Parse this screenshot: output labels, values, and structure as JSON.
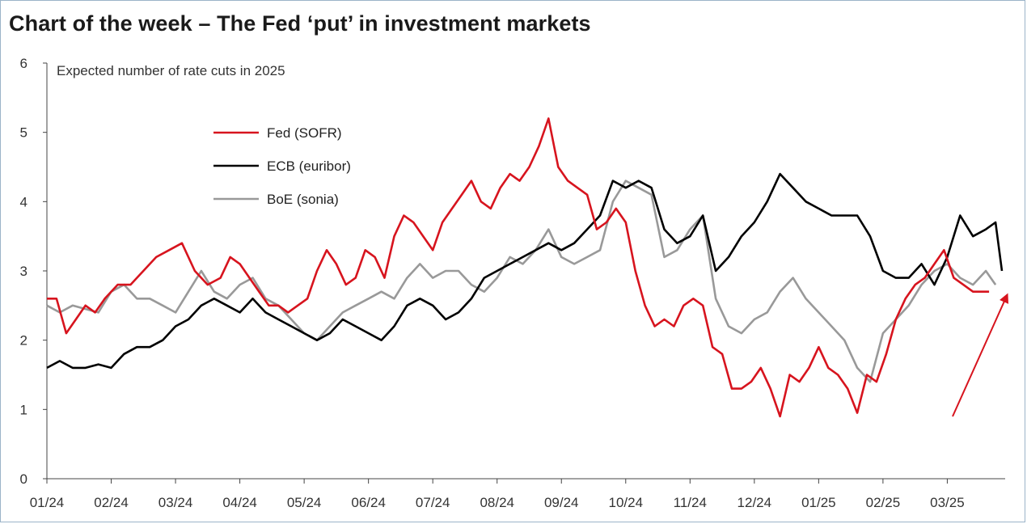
{
  "title": "Chart of the week – The Fed ‘put’ in investment markets",
  "chart_data": {
    "type": "line",
    "ylabel": "Expected number of rate cuts in 2025",
    "ylim": [
      0,
      6
    ],
    "yticks": [
      "0",
      "1",
      "2",
      "3",
      "4",
      "5",
      "6"
    ],
    "xlim": [
      0,
      14.9
    ],
    "xticks": [
      "01/24",
      "02/24",
      "03/24",
      "04/24",
      "05/24",
      "06/24",
      "07/24",
      "08/24",
      "09/24",
      "10/24",
      "11/24",
      "12/24",
      "01/25",
      "02/25",
      "03/25"
    ],
    "grid": false,
    "legend_position": "top-left",
    "annotation": "red arrow pointing upward at the end of the Fed (SOFR) series",
    "series": [
      {
        "name": "Fed (SOFR)",
        "color": "#d7141e",
        "x": [
          0,
          0.15,
          0.3,
          0.45,
          0.6,
          0.75,
          0.9,
          1.1,
          1.3,
          1.5,
          1.7,
          1.9,
          2.1,
          2.3,
          2.5,
          2.7,
          2.85,
          3.0,
          3.15,
          3.3,
          3.45,
          3.6,
          3.75,
          3.9,
          4.05,
          4.2,
          4.35,
          4.5,
          4.65,
          4.8,
          4.95,
          5.1,
          5.25,
          5.4,
          5.55,
          5.7,
          5.85,
          6.0,
          6.15,
          6.3,
          6.45,
          6.6,
          6.75,
          6.9,
          7.05,
          7.2,
          7.35,
          7.5,
          7.65,
          7.8,
          7.95,
          8.1,
          8.25,
          8.4,
          8.55,
          8.7,
          8.85,
          9.0,
          9.15,
          9.3,
          9.45,
          9.6,
          9.75,
          9.9,
          10.05,
          10.2,
          10.35,
          10.5,
          10.65,
          10.8,
          10.95,
          11.1,
          11.25,
          11.4,
          11.55,
          11.7,
          11.85,
          12.0,
          12.15,
          12.3,
          12.45,
          12.6,
          12.75,
          12.9,
          13.05,
          13.2,
          13.35,
          13.5,
          13.65,
          13.8,
          13.95,
          14.1,
          14.25,
          14.4,
          14.55,
          14.65
        ],
        "values": [
          2.6,
          2.6,
          2.1,
          2.3,
          2.5,
          2.4,
          2.6,
          2.8,
          2.8,
          3.0,
          3.2,
          3.3,
          3.4,
          3.0,
          2.8,
          2.9,
          3.2,
          3.1,
          2.9,
          2.7,
          2.5,
          2.5,
          2.4,
          2.5,
          2.6,
          3.0,
          3.3,
          3.1,
          2.8,
          2.9,
          3.3,
          3.2,
          2.9,
          3.5,
          3.8,
          3.7,
          3.5,
          3.3,
          3.7,
          3.9,
          4.1,
          4.3,
          4.0,
          3.9,
          4.2,
          4.4,
          4.3,
          4.5,
          4.8,
          5.2,
          4.5,
          4.3,
          4.2,
          4.1,
          3.6,
          3.7,
          3.9,
          3.7,
          3.0,
          2.5,
          2.2,
          2.3,
          2.2,
          2.5,
          2.6,
          2.5,
          1.9,
          1.8,
          1.3,
          1.3,
          1.4,
          1.6,
          1.3,
          0.9,
          1.5,
          1.4,
          1.6,
          1.9,
          1.6,
          1.5,
          1.3,
          0.95,
          1.5,
          1.4,
          1.8,
          2.3,
          2.6,
          2.8,
          2.9,
          3.1,
          3.3,
          2.9,
          2.8,
          2.7,
          2.7,
          2.7
        ]
      },
      {
        "name": "ECB (euribor)",
        "color": "#000000",
        "x": [
          0,
          0.2,
          0.4,
          0.6,
          0.8,
          1.0,
          1.2,
          1.4,
          1.6,
          1.8,
          2.0,
          2.2,
          2.4,
          2.6,
          2.8,
          3.0,
          3.2,
          3.4,
          3.6,
          3.8,
          4.0,
          4.2,
          4.4,
          4.6,
          4.8,
          5.0,
          5.2,
          5.4,
          5.6,
          5.8,
          6.0,
          6.2,
          6.4,
          6.6,
          6.8,
          7.0,
          7.2,
          7.4,
          7.6,
          7.8,
          8.0,
          8.2,
          8.4,
          8.6,
          8.8,
          9.0,
          9.2,
          9.4,
          9.6,
          9.8,
          10.0,
          10.2,
          10.4,
          10.6,
          10.8,
          11.0,
          11.2,
          11.4,
          11.6,
          11.8,
          12.0,
          12.2,
          12.4,
          12.6,
          12.8,
          13.0,
          13.2,
          13.4,
          13.6,
          13.8,
          14.0,
          14.2,
          14.4,
          14.6,
          14.75,
          14.85
        ],
        "values": [
          1.6,
          1.7,
          1.6,
          1.6,
          1.65,
          1.6,
          1.8,
          1.9,
          1.9,
          2.0,
          2.2,
          2.3,
          2.5,
          2.6,
          2.5,
          2.4,
          2.6,
          2.4,
          2.3,
          2.2,
          2.1,
          2.0,
          2.1,
          2.3,
          2.2,
          2.1,
          2.0,
          2.2,
          2.5,
          2.6,
          2.5,
          2.3,
          2.4,
          2.6,
          2.9,
          3.0,
          3.1,
          3.2,
          3.3,
          3.4,
          3.3,
          3.4,
          3.6,
          3.8,
          4.3,
          4.2,
          4.3,
          4.2,
          3.6,
          3.4,
          3.5,
          3.8,
          3.0,
          3.2,
          3.5,
          3.7,
          4.0,
          4.4,
          4.2,
          4.0,
          3.9,
          3.8,
          3.8,
          3.8,
          3.5,
          3.0,
          2.9,
          2.9,
          3.1,
          2.8,
          3.2,
          3.8,
          3.5,
          3.6,
          3.7,
          3.0
        ]
      },
      {
        "name": "BoE (sonia)",
        "color": "#999999",
        "x": [
          0,
          0.2,
          0.4,
          0.6,
          0.8,
          1.0,
          1.2,
          1.4,
          1.6,
          1.8,
          2.0,
          2.2,
          2.4,
          2.6,
          2.8,
          3.0,
          3.2,
          3.4,
          3.6,
          3.8,
          4.0,
          4.2,
          4.4,
          4.6,
          4.8,
          5.0,
          5.2,
          5.4,
          5.6,
          5.8,
          6.0,
          6.2,
          6.4,
          6.6,
          6.8,
          7.0,
          7.2,
          7.4,
          7.6,
          7.8,
          8.0,
          8.2,
          8.4,
          8.6,
          8.8,
          9.0,
          9.2,
          9.4,
          9.6,
          9.8,
          10.0,
          10.2,
          10.4,
          10.6,
          10.8,
          11.0,
          11.2,
          11.4,
          11.6,
          11.8,
          12.0,
          12.2,
          12.4,
          12.6,
          12.8,
          13.0,
          13.2,
          13.4,
          13.6,
          13.8,
          14.0,
          14.2,
          14.4,
          14.6,
          14.75
        ],
        "values": [
          2.5,
          2.4,
          2.5,
          2.45,
          2.4,
          2.7,
          2.8,
          2.6,
          2.6,
          2.5,
          2.4,
          2.7,
          3.0,
          2.7,
          2.6,
          2.8,
          2.9,
          2.6,
          2.5,
          2.3,
          2.1,
          2.0,
          2.2,
          2.4,
          2.5,
          2.6,
          2.7,
          2.6,
          2.9,
          3.1,
          2.9,
          3.0,
          3.0,
          2.8,
          2.7,
          2.9,
          3.2,
          3.1,
          3.3,
          3.6,
          3.2,
          3.1,
          3.2,
          3.3,
          4.0,
          4.3,
          4.2,
          4.1,
          3.2,
          3.3,
          3.6,
          3.8,
          2.6,
          2.2,
          2.1,
          2.3,
          2.4,
          2.7,
          2.9,
          2.6,
          2.4,
          2.2,
          2.0,
          1.6,
          1.4,
          2.1,
          2.3,
          2.5,
          2.8,
          3.0,
          3.1,
          2.9,
          2.8,
          3.0,
          2.8
        ]
      }
    ]
  }
}
